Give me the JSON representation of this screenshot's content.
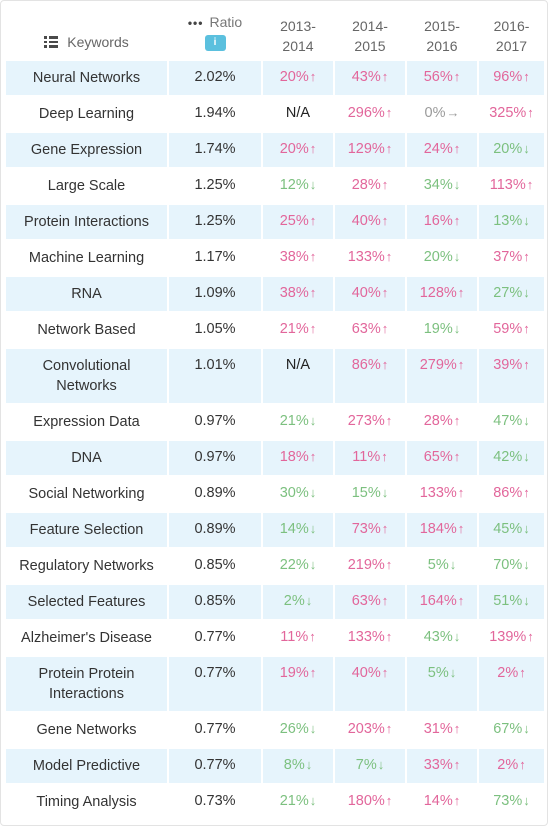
{
  "header": {
    "keywords_label": "Keywords",
    "ratio_label": "Ratio",
    "ratio_dots": "•••",
    "info_glyph": "i",
    "years": [
      [
        "2013-",
        "2014"
      ],
      [
        "2014-",
        "2015"
      ],
      [
        "2015-",
        "2016"
      ],
      [
        "2016-",
        "2017"
      ]
    ]
  },
  "colors": {
    "up": "#e2669b",
    "down": "#7cc07f",
    "flat": "#9a9a9a",
    "row_shade": "#e6f4fc",
    "info": "#5bc0de"
  },
  "rows": [
    {
      "keyword": "Neural Networks",
      "ratio": "2.02%",
      "changes": [
        [
          "20%",
          "up"
        ],
        [
          "43%",
          "up"
        ],
        [
          "56%",
          "up"
        ],
        [
          "96%",
          "up"
        ]
      ]
    },
    {
      "keyword": "Deep Learning",
      "ratio": "1.94%",
      "changes": [
        [
          "N/A",
          "na"
        ],
        [
          "296%",
          "up"
        ],
        [
          "0%",
          "flat"
        ],
        [
          "325%",
          "up"
        ]
      ]
    },
    {
      "keyword": "Gene Expression",
      "ratio": "1.74%",
      "changes": [
        [
          "20%",
          "up"
        ],
        [
          "129%",
          "up"
        ],
        [
          "24%",
          "up"
        ],
        [
          "20%",
          "down"
        ]
      ]
    },
    {
      "keyword": "Large Scale",
      "ratio": "1.25%",
      "changes": [
        [
          "12%",
          "down"
        ],
        [
          "28%",
          "up"
        ],
        [
          "34%",
          "down"
        ],
        [
          "113%",
          "up"
        ]
      ]
    },
    {
      "keyword": "Protein Interactions",
      "ratio": "1.25%",
      "changes": [
        [
          "25%",
          "up"
        ],
        [
          "40%",
          "up"
        ],
        [
          "16%",
          "up"
        ],
        [
          "13%",
          "down"
        ]
      ]
    },
    {
      "keyword": "Machine Learning",
      "ratio": "1.17%",
      "changes": [
        [
          "38%",
          "up"
        ],
        [
          "133%",
          "up"
        ],
        [
          "20%",
          "down"
        ],
        [
          "37%",
          "up"
        ]
      ]
    },
    {
      "keyword": "RNA",
      "ratio": "1.09%",
      "changes": [
        [
          "38%",
          "up"
        ],
        [
          "40%",
          "up"
        ],
        [
          "128%",
          "up"
        ],
        [
          "27%",
          "down"
        ]
      ]
    },
    {
      "keyword": "Network Based",
      "ratio": "1.05%",
      "changes": [
        [
          "21%",
          "up"
        ],
        [
          "63%",
          "up"
        ],
        [
          "19%",
          "down"
        ],
        [
          "59%",
          "up"
        ]
      ]
    },
    {
      "keyword": "Convolutional Networks",
      "ratio": "1.01%",
      "changes": [
        [
          "N/A",
          "na"
        ],
        [
          "86%",
          "up"
        ],
        [
          "279%",
          "up"
        ],
        [
          "39%",
          "up"
        ]
      ],
      "tall": true
    },
    {
      "keyword": "Expression Data",
      "ratio": "0.97%",
      "changes": [
        [
          "21%",
          "down"
        ],
        [
          "273%",
          "up"
        ],
        [
          "28%",
          "up"
        ],
        [
          "47%",
          "down"
        ]
      ]
    },
    {
      "keyword": "DNA",
      "ratio": "0.97%",
      "changes": [
        [
          "18%",
          "up"
        ],
        [
          "11%",
          "up"
        ],
        [
          "65%",
          "up"
        ],
        [
          "42%",
          "down"
        ]
      ]
    },
    {
      "keyword": "Social Networking",
      "ratio": "0.89%",
      "changes": [
        [
          "30%",
          "down"
        ],
        [
          "15%",
          "down"
        ],
        [
          "133%",
          "up"
        ],
        [
          "86%",
          "up"
        ]
      ]
    },
    {
      "keyword": "Feature Selection",
      "ratio": "0.89%",
      "changes": [
        [
          "14%",
          "down"
        ],
        [
          "73%",
          "up"
        ],
        [
          "184%",
          "up"
        ],
        [
          "45%",
          "down"
        ]
      ]
    },
    {
      "keyword": "Regulatory Networks",
      "ratio": "0.85%",
      "changes": [
        [
          "22%",
          "down"
        ],
        [
          "219%",
          "up"
        ],
        [
          "5%",
          "down"
        ],
        [
          "70%",
          "down"
        ]
      ]
    },
    {
      "keyword": "Selected Features",
      "ratio": "0.85%",
      "changes": [
        [
          "2%",
          "down"
        ],
        [
          "63%",
          "up"
        ],
        [
          "164%",
          "up"
        ],
        [
          "51%",
          "down"
        ]
      ]
    },
    {
      "keyword": "Alzheimer's Disease",
      "ratio": "0.77%",
      "changes": [
        [
          "11%",
          "up"
        ],
        [
          "133%",
          "up"
        ],
        [
          "43%",
          "down"
        ],
        [
          "139%",
          "up"
        ]
      ]
    },
    {
      "keyword": "Protein Protein Interactions",
      "ratio": "0.77%",
      "changes": [
        [
          "19%",
          "up"
        ],
        [
          "40%",
          "up"
        ],
        [
          "5%",
          "down"
        ],
        [
          "2%",
          "up"
        ]
      ],
      "tall": true
    },
    {
      "keyword": "Gene Networks",
      "ratio": "0.77%",
      "changes": [
        [
          "26%",
          "down"
        ],
        [
          "203%",
          "up"
        ],
        [
          "31%",
          "up"
        ],
        [
          "67%",
          "down"
        ]
      ]
    },
    {
      "keyword": "Model Predictive",
      "ratio": "0.77%",
      "changes": [
        [
          "8%",
          "down"
        ],
        [
          "7%",
          "down"
        ],
        [
          "33%",
          "up"
        ],
        [
          "2%",
          "up"
        ]
      ]
    },
    {
      "keyword": "Timing Analysis",
      "ratio": "0.73%",
      "changes": [
        [
          "21%",
          "down"
        ],
        [
          "180%",
          "up"
        ],
        [
          "14%",
          "up"
        ],
        [
          "73%",
          "down"
        ]
      ]
    }
  ]
}
